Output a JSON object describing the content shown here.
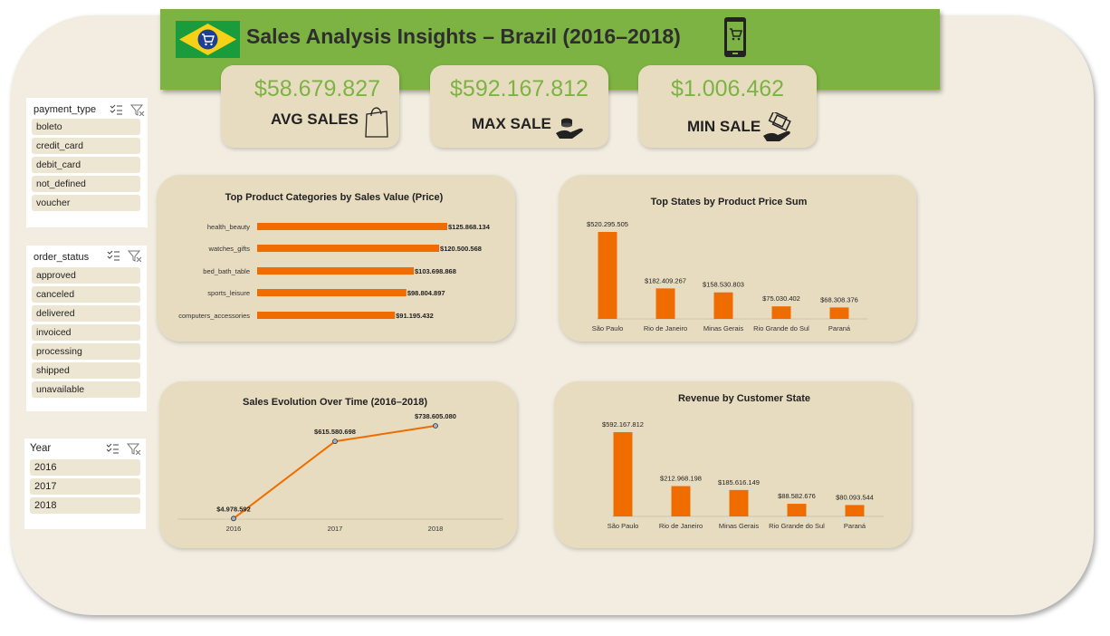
{
  "header": {
    "title": "Sales Analysis Insights – Brazil (2016–2018)",
    "flag_icon": "brazil-flag-shopping-cart-icon",
    "phone_icon": "mobile-shopping-cart-icon",
    "header_color": "#7cb342"
  },
  "kpis": [
    {
      "value": "$58.679.827",
      "label": "AVG SALES",
      "icon": "shopping-bag-icon"
    },
    {
      "value": "$592.167.812",
      "label": "MAX SALE",
      "icon": "coins-hand-icon"
    },
    {
      "value": "$1.006.462",
      "label": "MIN SALE",
      "icon": "money-hand-icon"
    }
  ],
  "slicers": {
    "payment_type": {
      "title": "payment_type",
      "items": [
        "boleto",
        "credit_card",
        "debit_card",
        "not_defined",
        "voucher"
      ]
    },
    "order_status": {
      "title": "order_status",
      "items": [
        "approved",
        "canceled",
        "delivered",
        "invoiced",
        "processing",
        "shipped",
        "unavailable"
      ]
    },
    "year": {
      "title": "Year",
      "items": [
        "2016",
        "2017",
        "2018"
      ]
    }
  },
  "chart_data": [
    {
      "type": "bar",
      "orientation": "horizontal",
      "title": "Top Product Categories by Sales Value (Price)",
      "categories": [
        "health_beauty",
        "watches_gifts",
        "bed_bath_table",
        "sports_leisure",
        "computers_accessories"
      ],
      "values": [
        125868134,
        120500568,
        103698868,
        98804897,
        91195432
      ],
      "labels": [
        "$125.868.134",
        "$120.500.568",
        "$103.698.868",
        "$98.804.897",
        "$91.195.432"
      ],
      "color": "#ef6c00"
    },
    {
      "type": "bar",
      "title": "Top States by Product Price Sum",
      "categories": [
        "São Paulo",
        "Rio de Janeiro",
        "Minas Gerais",
        "Rio Grande do Sul",
        "Paraná"
      ],
      "values": [
        520295505,
        182409267,
        158530803,
        75030402,
        68308376
      ],
      "labels": [
        "$520.295.505",
        "$182.409.267",
        "$158.530.803",
        "$75.030.402",
        "$68.308.376"
      ],
      "color": "#ef6c00"
    },
    {
      "type": "line",
      "title": "Sales Evolution Over Time (2016–2018)",
      "x": [
        "2016",
        "2017",
        "2018"
      ],
      "values": [
        4978592,
        615580698,
        738605080
      ],
      "labels": [
        "$4.978.592",
        "$615.580.698",
        "$738.605.080"
      ],
      "color": "#ef6c00"
    },
    {
      "type": "bar",
      "title": "Revenue by Customer State",
      "categories": [
        "São Paulo",
        "Rio de Janeiro",
        "Minas Gerais",
        "Rio Grande do Sul",
        "Paraná"
      ],
      "values": [
        592167812,
        212968198,
        185616149,
        88582676,
        80093544
      ],
      "labels": [
        "$592.167.812",
        "$212.968.198",
        "$185.616.149",
        "$88.582.676",
        "$80.093.544"
      ],
      "color": "#ef6c00"
    }
  ]
}
